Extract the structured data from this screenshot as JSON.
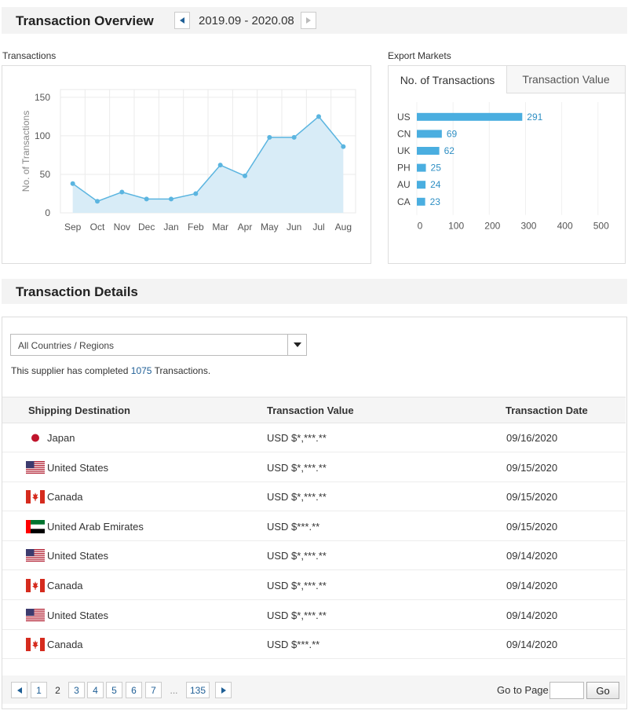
{
  "overview": {
    "title": "Transaction Overview",
    "date_range": "2019.09 - 2020.08"
  },
  "transactions_chart_label": "Transactions",
  "export_markets_label": "Export Markets",
  "export_tabs": [
    {
      "label": "No. of Transactions",
      "active": true
    },
    {
      "label": "Transaction Value",
      "active": false
    }
  ],
  "chart_data": [
    {
      "type": "area",
      "title": "",
      "xlabel": "",
      "ylabel": "No. of Transactions",
      "categories": [
        "Sep",
        "Oct",
        "Nov",
        "Dec",
        "Jan",
        "Feb",
        "Mar",
        "Apr",
        "May",
        "Jun",
        "Jul",
        "Aug"
      ],
      "values": [
        38,
        15,
        27,
        18,
        18,
        25,
        62,
        48,
        98,
        98,
        125,
        86
      ],
      "yticks": [
        0,
        50,
        100,
        150
      ],
      "ylim": [
        0,
        160
      ],
      "grid": true,
      "color": "#5bb5e0",
      "fill": "#d8ecf7"
    },
    {
      "type": "bar",
      "orientation": "horizontal",
      "categories": [
        "US",
        "CN",
        "UK",
        "PH",
        "AU",
        "CA"
      ],
      "values": [
        291,
        69,
        62,
        25,
        24,
        23
      ],
      "xticks": [
        0,
        100,
        200,
        300,
        400,
        500
      ],
      "xlim": [
        0,
        520
      ],
      "grid": true,
      "color": "#4aaee0",
      "label_color": "#2f8fc4"
    }
  ],
  "details": {
    "title": "Transaction Details",
    "filter_value": "All Countries / Regions",
    "summary_prefix": "This supplier has completed",
    "summary_count": "1075",
    "summary_suffix": "Transactions.",
    "columns": [
      "Shipping Destination",
      "Transaction Value",
      "Transaction Date"
    ],
    "rows": [
      {
        "flag": "jp-flag-icon",
        "country": "Japan",
        "value": "USD $*,***.**",
        "date": "09/16/2020"
      },
      {
        "flag": "us-flag-icon",
        "country": "United States",
        "value": "USD $*,***.**",
        "date": "09/15/2020"
      },
      {
        "flag": "ca-flag-icon",
        "country": "Canada",
        "value": "USD $*,***.**",
        "date": "09/15/2020"
      },
      {
        "flag": "ae-flag-icon",
        "country": "United Arab Emirates",
        "value": "USD $***.**",
        "date": "09/15/2020"
      },
      {
        "flag": "us-flag-icon",
        "country": "United States",
        "value": "USD $*,***.**",
        "date": "09/14/2020"
      },
      {
        "flag": "ca-flag-icon",
        "country": "Canada",
        "value": "USD $*,***.**",
        "date": "09/14/2020"
      },
      {
        "flag": "us-flag-icon",
        "country": "United States",
        "value": "USD $*,***.**",
        "date": "09/14/2020"
      },
      {
        "flag": "ca-flag-icon",
        "country": "Canada",
        "value": "USD $***.**",
        "date": "09/14/2020"
      }
    ]
  },
  "pagination": {
    "pages": [
      "1",
      "2",
      "3",
      "4",
      "5",
      "6",
      "7",
      "...",
      "135"
    ],
    "current": "2",
    "goto_label": "Go to Page",
    "go_label": "Go"
  }
}
